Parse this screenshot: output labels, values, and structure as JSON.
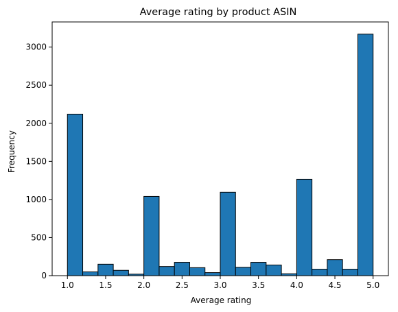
{
  "chart_data": {
    "type": "bar",
    "title": "Average rating by product ASIN",
    "xlabel": "Average rating",
    "ylabel": "Frequency",
    "bin_edges": [
      1.0,
      1.2,
      1.4,
      1.6,
      1.8,
      2.0,
      2.2,
      2.4,
      2.6,
      2.8,
      3.0,
      3.2,
      3.4,
      3.6,
      3.8,
      4.0,
      4.2,
      4.4,
      4.6,
      4.8,
      5.0
    ],
    "values": [
      2120,
      50,
      150,
      70,
      20,
      1040,
      120,
      175,
      105,
      40,
      1095,
      110,
      175,
      140,
      25,
      1265,
      85,
      210,
      85,
      3170
    ],
    "xlim": [
      0.8,
      5.2
    ],
    "ylim": [
      0,
      3330
    ],
    "xticks": [
      "1.0",
      "1.5",
      "2.0",
      "2.5",
      "3.0",
      "3.5",
      "4.0",
      "4.5",
      "5.0"
    ],
    "yticks": [
      "0",
      "500",
      "1000",
      "1500",
      "2000",
      "2500",
      "3000"
    ],
    "bar_color": "#1f77b4",
    "edge_color": "#000000",
    "grid": false,
    "legend": "none"
  }
}
